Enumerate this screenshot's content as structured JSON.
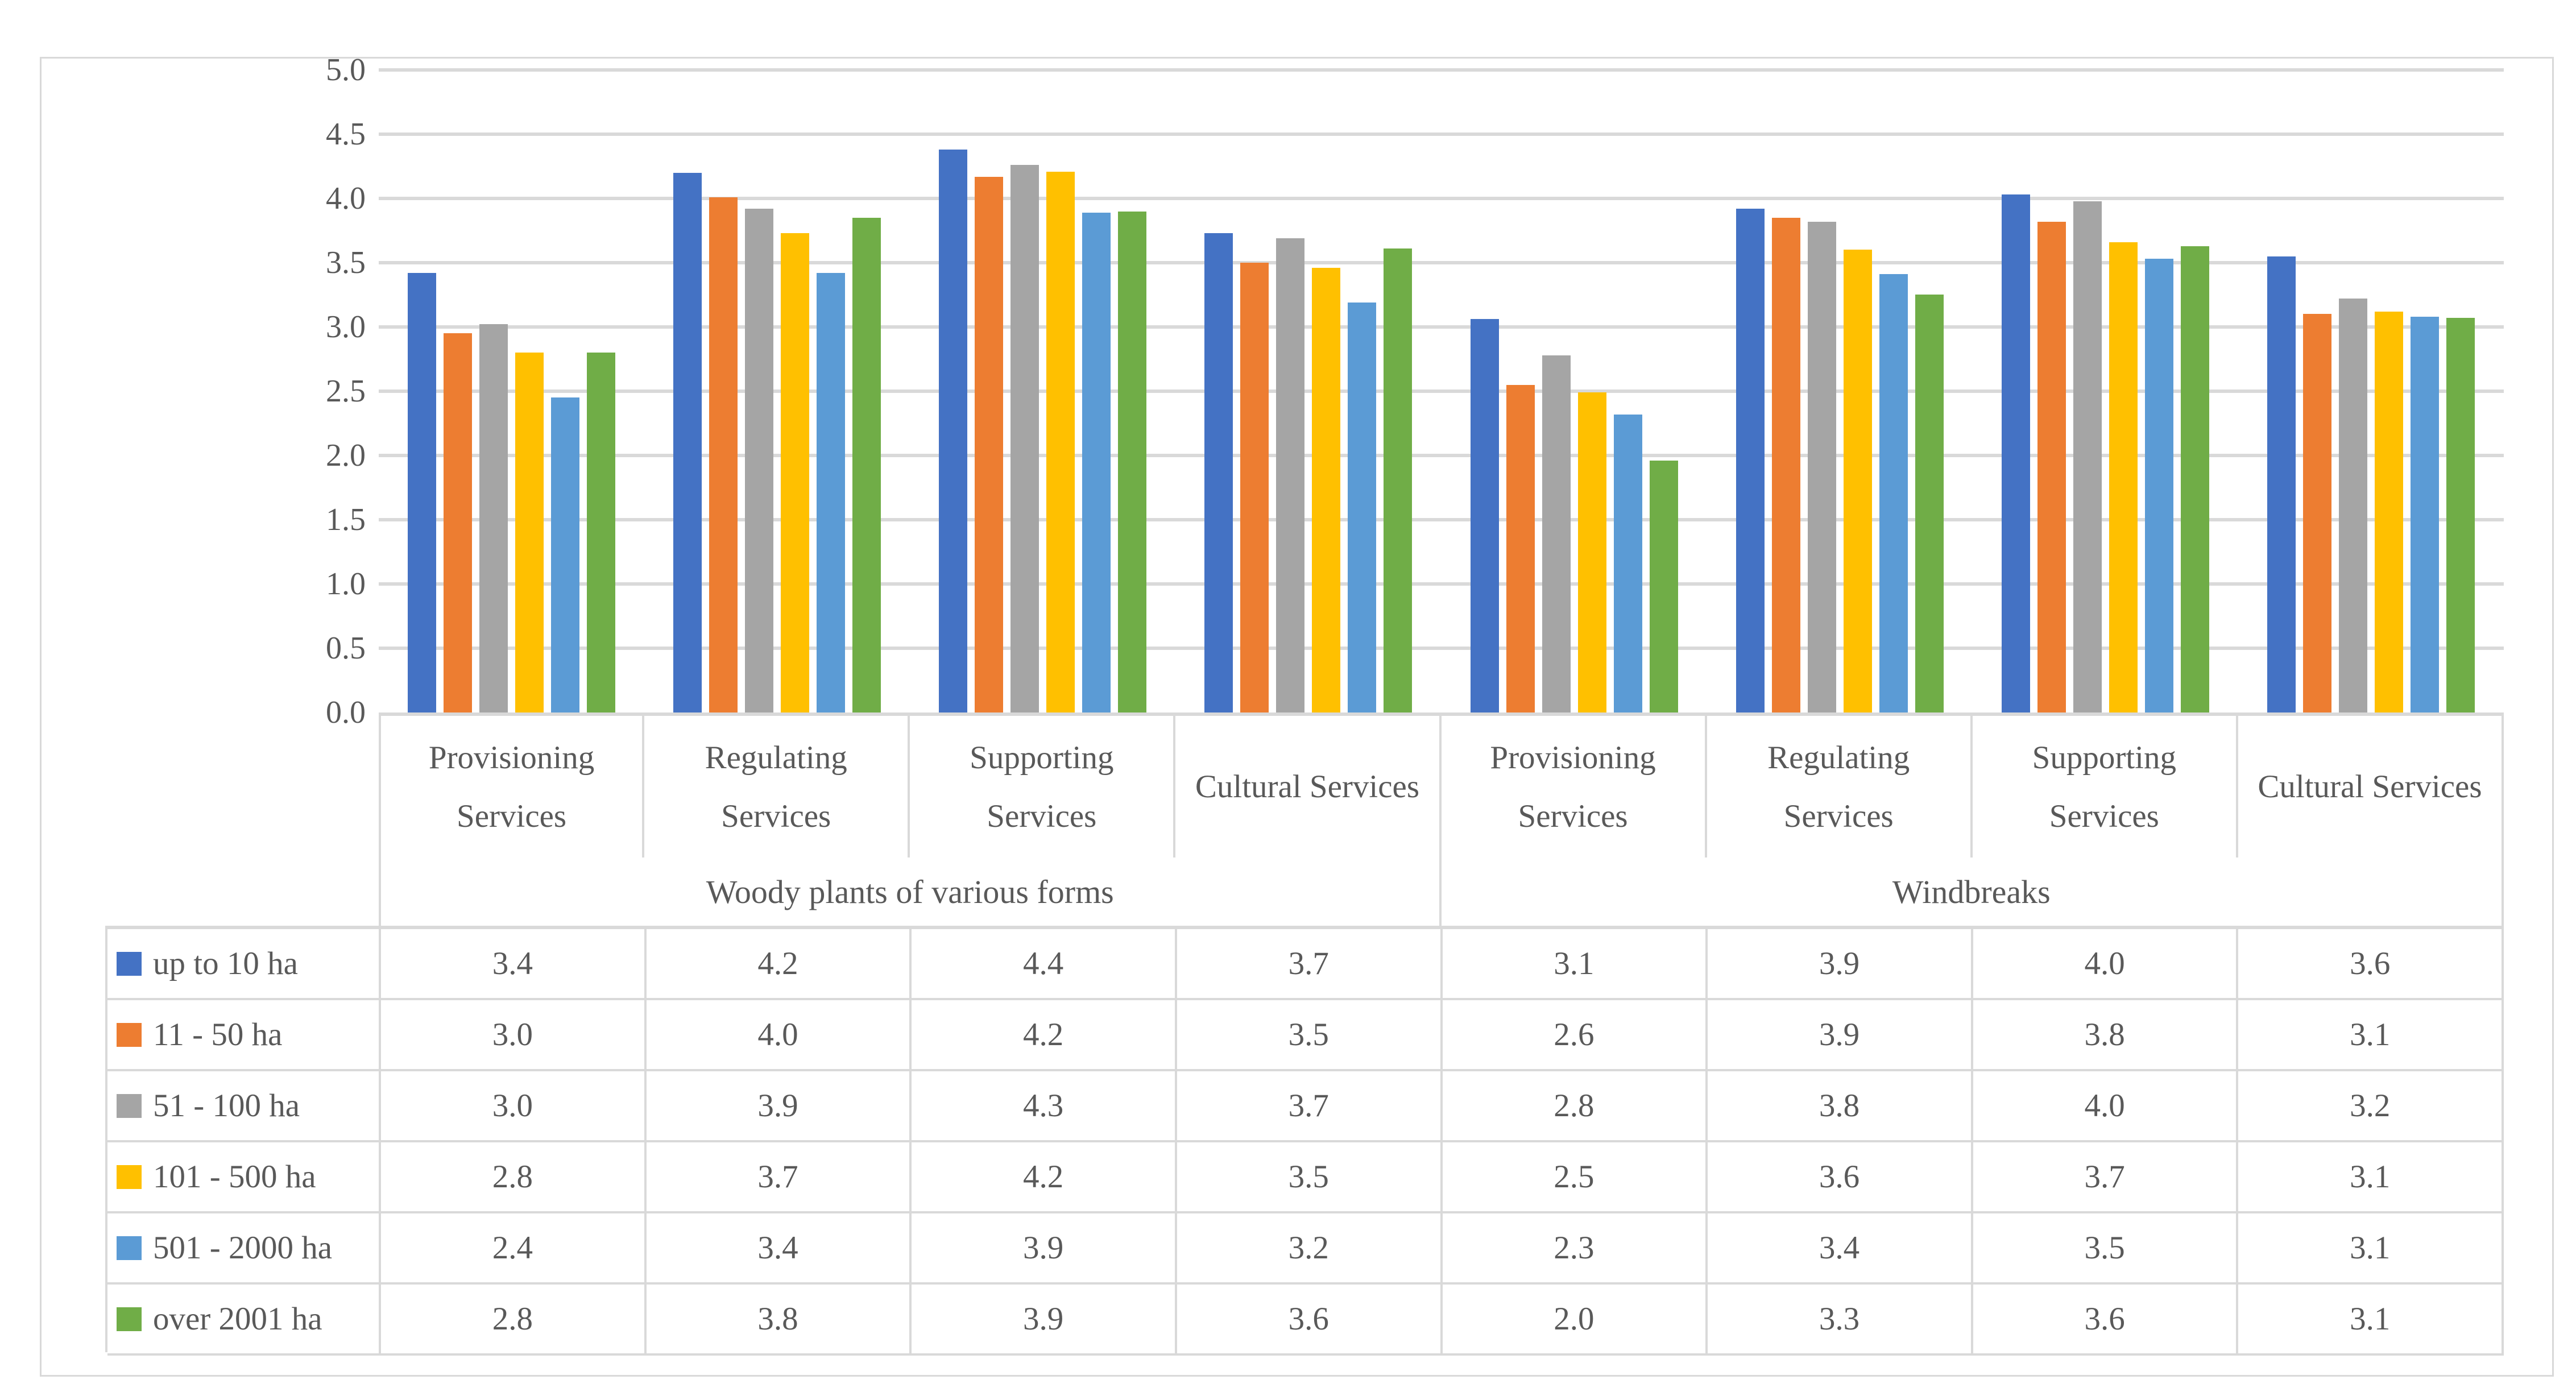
{
  "chart_data": {
    "type": "bar",
    "title": "",
    "xlabel": "",
    "ylabel": "",
    "ylim": [
      0,
      5
    ],
    "y_tick_step": 0.5,
    "grid": "horizontal",
    "gridline_color": "#D9D9D9",
    "text_color": "#595959",
    "legend_position": "table-left",
    "y_ticks": [
      "0.0",
      "0.5",
      "1.0",
      "1.5",
      "2.0",
      "2.5",
      "3.0",
      "3.5",
      "4.0",
      "4.5",
      "5.0"
    ],
    "categories": [
      "Provisioning Services",
      "Regulating Services",
      "Supporting Services",
      "Cultural Services",
      "Provisioning Services",
      "Regulating Services",
      "Supporting Services",
      "Cultural Services"
    ],
    "category_groups": [
      {
        "label": "Woody plants of various forms",
        "span": 4
      },
      {
        "label": "Windbreaks",
        "span": 4
      }
    ],
    "series": [
      {
        "name": "up to 10 ha",
        "color": "#4472C4",
        "values": [
          "3.4",
          "4.2",
          "4.4",
          "3.7",
          "3.1",
          "3.9",
          "4.0",
          "3.6"
        ],
        "bar_values": [
          3.42,
          4.2,
          4.38,
          3.73,
          3.06,
          3.92,
          4.03,
          3.55
        ]
      },
      {
        "name": "11 - 50 ha",
        "color": "#ED7D31",
        "values": [
          "3.0",
          "4.0",
          "4.2",
          "3.5",
          "2.6",
          "3.9",
          "3.8",
          "3.1"
        ],
        "bar_values": [
          2.95,
          4.01,
          4.17,
          3.5,
          2.55,
          3.85,
          3.82,
          3.1
        ]
      },
      {
        "name": "51 - 100 ha",
        "color": "#A5A5A5",
        "values": [
          "3.0",
          "3.9",
          "4.3",
          "3.7",
          "2.8",
          "3.8",
          "4.0",
          "3.2"
        ],
        "bar_values": [
          3.02,
          3.92,
          4.26,
          3.69,
          2.78,
          3.82,
          3.98,
          3.22
        ]
      },
      {
        "name": "101 - 500 ha",
        "color": "#FFC000",
        "values": [
          "2.8",
          "3.7",
          "4.2",
          "3.5",
          "2.5",
          "3.6",
          "3.7",
          "3.1"
        ],
        "bar_values": [
          2.8,
          3.73,
          4.21,
          3.46,
          2.49,
          3.6,
          3.66,
          3.12
        ]
      },
      {
        "name": "501 - 2000 ha",
        "color": "#5B9BD5",
        "values": [
          "2.4",
          "3.4",
          "3.9",
          "3.2",
          "2.3",
          "3.4",
          "3.5",
          "3.1"
        ],
        "bar_values": [
          2.45,
          3.42,
          3.89,
          3.19,
          2.32,
          3.41,
          3.53,
          3.08
        ]
      },
      {
        "name": "over 2001 ha",
        "color": "#70AD47",
        "values": [
          "2.8",
          "3.8",
          "3.9",
          "3.6",
          "2.0",
          "3.3",
          "3.6",
          "3.1"
        ],
        "bar_values": [
          2.8,
          3.85,
          3.9,
          3.61,
          1.96,
          3.25,
          3.63,
          3.07
        ]
      }
    ]
  }
}
